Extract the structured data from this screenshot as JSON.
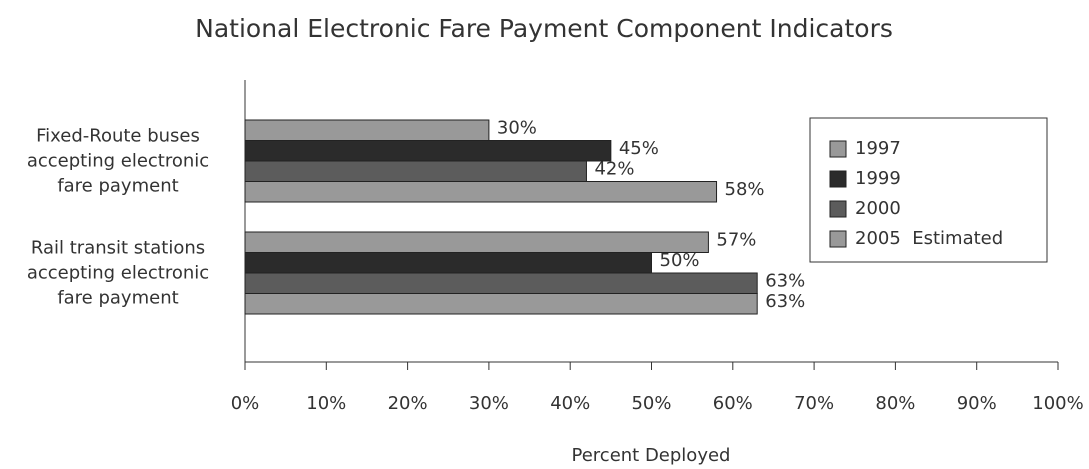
{
  "chart_data": {
    "type": "bar",
    "orientation": "horizontal",
    "title": "National Electronic Fare Payment Component Indicators",
    "xlabel": "Percent Deployed",
    "categories": [
      "Fixed-Route buses accepting electronic fare payment",
      "Rail transit stations accepting electronic fare payment"
    ],
    "series": [
      {
        "name": "1997",
        "color": "#999999",
        "values": [
          30,
          57
        ],
        "value_labels": [
          "30%",
          "57%"
        ]
      },
      {
        "name": "1999",
        "color": "#2b2b2b",
        "values": [
          45,
          50
        ],
        "value_labels": [
          "45%",
          "50%"
        ]
      },
      {
        "name": "2000",
        "color": "#5c5c5c",
        "values": [
          42,
          63
        ],
        "value_labels": [
          "42%",
          "63%"
        ]
      },
      {
        "name": "2005  Estimated",
        "color": "#999999",
        "values": [
          58,
          63
        ],
        "value_labels": [
          "58%",
          "63%"
        ]
      }
    ],
    "xlim": [
      0,
      100
    ],
    "xticks": [
      {
        "value": 0,
        "label": "0%"
      },
      {
        "value": 10,
        "label": "10%"
      },
      {
        "value": 20,
        "label": "20%"
      },
      {
        "value": 30,
        "label": "30%"
      },
      {
        "value": 40,
        "label": "40%"
      },
      {
        "value": 50,
        "label": "50%"
      },
      {
        "value": 60,
        "label": "60%"
      },
      {
        "value": 70,
        "label": "70%"
      },
      {
        "value": 80,
        "label": "80%"
      },
      {
        "value": 90,
        "label": "90%"
      },
      {
        "value": 100,
        "label": "100%"
      }
    ],
    "legend": "right"
  }
}
